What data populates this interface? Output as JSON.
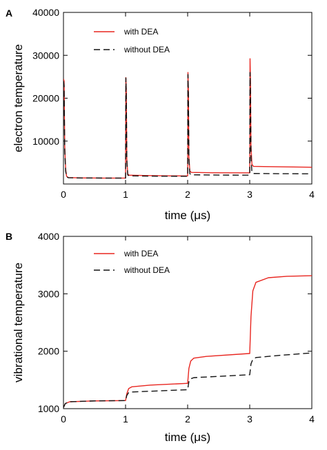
{
  "chart_data": [
    {
      "panel_label": "A",
      "type": "line",
      "xlabel": "time (μs)",
      "ylabel": "electron temperature",
      "xlim": [
        0,
        4
      ],
      "ylim": [
        0,
        40000
      ],
      "x_ticks": [
        0,
        1,
        2,
        3,
        4
      ],
      "y_ticks": [
        10000,
        20000,
        30000,
        40000
      ],
      "y_tick_labels": [
        "10000",
        "20000",
        "30000",
        "40000"
      ],
      "legend_position": "top-left",
      "series": [
        {
          "name": "with DEA",
          "color": "#e8251f",
          "style": "solid",
          "points": [
            [
              0,
              24500
            ],
            [
              0.01,
              24000
            ],
            [
              0.02,
              9000
            ],
            [
              0.035,
              3500
            ],
            [
              0.05,
              1800
            ],
            [
              0.08,
              1500
            ],
            [
              0.3,
              1420
            ],
            [
              0.6,
              1380
            ],
            [
              0.99,
              1380
            ],
            [
              1.0,
              1380
            ],
            [
              1.005,
              24800
            ],
            [
              1.012,
              22000
            ],
            [
              1.02,
              6000
            ],
            [
              1.035,
              2300
            ],
            [
              1.06,
              2050
            ],
            [
              1.3,
              1980
            ],
            [
              1.7,
              1900
            ],
            [
              1.99,
              1880
            ],
            [
              2.0,
              1880
            ],
            [
              2.005,
              26000
            ],
            [
              2.012,
              22000
            ],
            [
              2.02,
              6500
            ],
            [
              2.035,
              3000
            ],
            [
              2.06,
              2700
            ],
            [
              2.4,
              2620
            ],
            [
              2.99,
              2600
            ],
            [
              3.0,
              2600
            ],
            [
              3.005,
              29200
            ],
            [
              3.012,
              24000
            ],
            [
              3.02,
              9000
            ],
            [
              3.035,
              4600
            ],
            [
              3.06,
              4100
            ],
            [
              3.5,
              4000
            ],
            [
              4.0,
              3900
            ]
          ]
        },
        {
          "name": "without DEA",
          "color": "#111111",
          "style": "dashed",
          "points": [
            [
              0,
              24000
            ],
            [
              0.01,
              23000
            ],
            [
              0.02,
              8000
            ],
            [
              0.035,
              3000
            ],
            [
              0.05,
              1700
            ],
            [
              0.08,
              1450
            ],
            [
              0.3,
              1400
            ],
            [
              0.99,
              1370
            ],
            [
              1.0,
              1370
            ],
            [
              1.005,
              24700
            ],
            [
              1.012,
              21000
            ],
            [
              1.02,
              5500
            ],
            [
              1.035,
              2100
            ],
            [
              1.06,
              1900
            ],
            [
              1.5,
              1820
            ],
            [
              1.99,
              1800
            ],
            [
              2.0,
              1800
            ],
            [
              2.005,
              25500
            ],
            [
              2.012,
              21000
            ],
            [
              2.02,
              6000
            ],
            [
              2.035,
              2400
            ],
            [
              2.06,
              2150
            ],
            [
              2.5,
              2080
            ],
            [
              2.99,
              2050
            ],
            [
              3.0,
              2050
            ],
            [
              3.005,
              26000
            ],
            [
              3.012,
              21000
            ],
            [
              3.02,
              6500
            ],
            [
              3.035,
              2700
            ],
            [
              3.06,
              2450
            ],
            [
              3.5,
              2400
            ],
            [
              4.0,
              2380
            ]
          ]
        }
      ]
    },
    {
      "panel_label": "B",
      "type": "line",
      "xlabel": "time (μs)",
      "ylabel": "vibrational temperature",
      "xlim": [
        0,
        4
      ],
      "ylim": [
        1000,
        4000
      ],
      "x_ticks": [
        0,
        1,
        2,
        3,
        4
      ],
      "y_ticks": [
        1000,
        2000,
        3000,
        4000
      ],
      "y_tick_labels": [
        "1000",
        "2000",
        "3000",
        "4000"
      ],
      "legend_position": "top-left",
      "series": [
        {
          "name": "with DEA",
          "color": "#e8251f",
          "style": "solid",
          "points": [
            [
              0,
              1020
            ],
            [
              0.03,
              1090
            ],
            [
              0.1,
              1120
            ],
            [
              0.5,
              1135
            ],
            [
              0.99,
              1140
            ],
            [
              1.0,
              1140
            ],
            [
              1.02,
              1260
            ],
            [
              1.05,
              1350
            ],
            [
              1.1,
              1380
            ],
            [
              1.4,
              1410
            ],
            [
              1.99,
              1440
            ],
            [
              2.0,
              1440
            ],
            [
              2.02,
              1700
            ],
            [
              2.05,
              1830
            ],
            [
              2.1,
              1880
            ],
            [
              2.3,
              1910
            ],
            [
              2.99,
              1960
            ],
            [
              3.0,
              1960
            ],
            [
              3.02,
              2600
            ],
            [
              3.05,
              3050
            ],
            [
              3.1,
              3200
            ],
            [
              3.3,
              3280
            ],
            [
              3.6,
              3305
            ],
            [
              4.0,
              3315
            ]
          ]
        },
        {
          "name": "without DEA",
          "color": "#111111",
          "style": "dashed",
          "points": [
            [
              0,
              1020
            ],
            [
              0.03,
              1090
            ],
            [
              0.1,
              1120
            ],
            [
              0.5,
              1135
            ],
            [
              0.99,
              1140
            ],
            [
              1.0,
              1140
            ],
            [
              1.02,
              1230
            ],
            [
              1.05,
              1280
            ],
            [
              1.1,
              1290
            ],
            [
              1.99,
              1330
            ],
            [
              2.0,
              1330
            ],
            [
              2.02,
              1470
            ],
            [
              2.05,
              1520
            ],
            [
              2.1,
              1540
            ],
            [
              2.99,
              1590
            ],
            [
              3.0,
              1590
            ],
            [
              3.02,
              1780
            ],
            [
              3.05,
              1860
            ],
            [
              3.1,
              1890
            ],
            [
              3.5,
              1930
            ],
            [
              4.0,
              1970
            ]
          ]
        }
      ]
    }
  ]
}
